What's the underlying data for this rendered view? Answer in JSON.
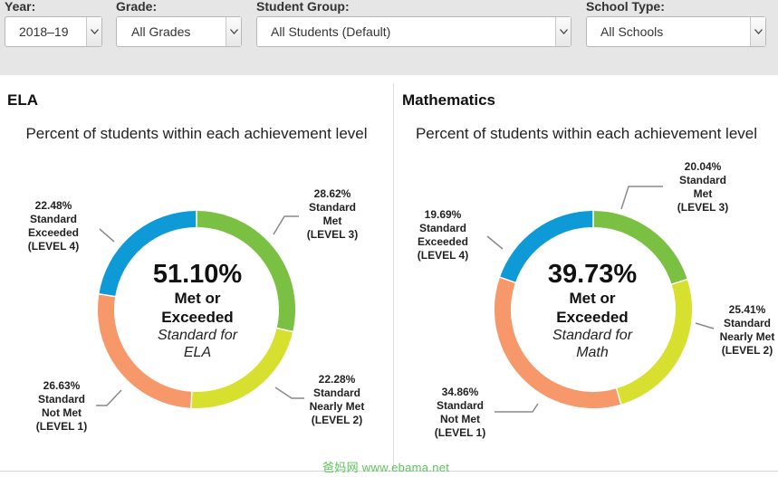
{
  "filters": [
    {
      "label": "Year:",
      "value": "2018–19"
    },
    {
      "label": "Grade:",
      "value": "All Grades"
    },
    {
      "label": "Student Group:",
      "value": "All Students (Default)"
    },
    {
      "label": "School Type:",
      "value": "All Schools"
    }
  ],
  "panels": [
    {
      "subject": "ELA",
      "subtitle": "Percent of students within each achievement level",
      "center": {
        "percent": "51.10%",
        "met": "Met or",
        "exceeded": "Exceeded",
        "std1": "Standard for",
        "std2": "ELA"
      }
    },
    {
      "subject": "Mathematics",
      "subtitle": "Percent of students within each achievement level",
      "center": {
        "percent": "39.73%",
        "met": "Met or",
        "exceeded": "Exceeded",
        "std1": "Standard for",
        "std2": "Math"
      }
    }
  ],
  "chart_data": [
    {
      "type": "pie",
      "title": "ELA",
      "subtitle": "Percent of students within each achievement level",
      "slices": [
        {
          "name": "Standard Met (LEVEL 3)",
          "value": 28.62,
          "percent_label": "28.62%",
          "lines": [
            "Standard",
            "Met",
            "(LEVEL 3)"
          ],
          "color": "#7ac143"
        },
        {
          "name": "Standard Nearly Met (LEVEL 2)",
          "value": 22.28,
          "percent_label": "22.28%",
          "lines": [
            "Standard",
            "Nearly Met",
            "(LEVEL 2)"
          ],
          "color": "#d7df2f"
        },
        {
          "name": "Standard Not Met (LEVEL 1)",
          "value": 26.63,
          "percent_label": "26.63%",
          "lines": [
            "Standard",
            "Not Met",
            "(LEVEL 1)"
          ],
          "color": "#f7986a"
        },
        {
          "name": "Standard Exceeded (LEVEL 4)",
          "value": 22.48,
          "percent_label": "22.48%",
          "lines": [
            "Standard",
            "Exceeded",
            "(LEVEL 4)"
          ],
          "color": "#0d9ad6"
        }
      ]
    },
    {
      "type": "pie",
      "title": "Mathematics",
      "subtitle": "Percent of students within each achievement level",
      "slices": [
        {
          "name": "Standard Met (LEVEL 3)",
          "value": 20.04,
          "percent_label": "20.04%",
          "lines": [
            "Standard",
            "Met",
            "(LEVEL 3)"
          ],
          "color": "#7ac143"
        },
        {
          "name": "Standard Nearly Met (LEVEL 2)",
          "value": 25.41,
          "percent_label": "25.41%",
          "lines": [
            "Standard",
            "Nearly Met",
            "(LEVEL 2)"
          ],
          "color": "#d7df2f"
        },
        {
          "name": "Standard Not Met (LEVEL 1)",
          "value": 34.86,
          "percent_label": "34.86%",
          "lines": [
            "Standard",
            "Not Met",
            "(LEVEL 1)"
          ],
          "color": "#f7986a"
        },
        {
          "name": "Standard Exceeded (LEVEL 4)",
          "value": 19.69,
          "percent_label": "19.69%",
          "lines": [
            "Standard",
            "Exceeded",
            "(LEVEL 4)"
          ],
          "color": "#0d9ad6"
        }
      ]
    }
  ],
  "watermark": "爸妈网 www.ebama.net"
}
